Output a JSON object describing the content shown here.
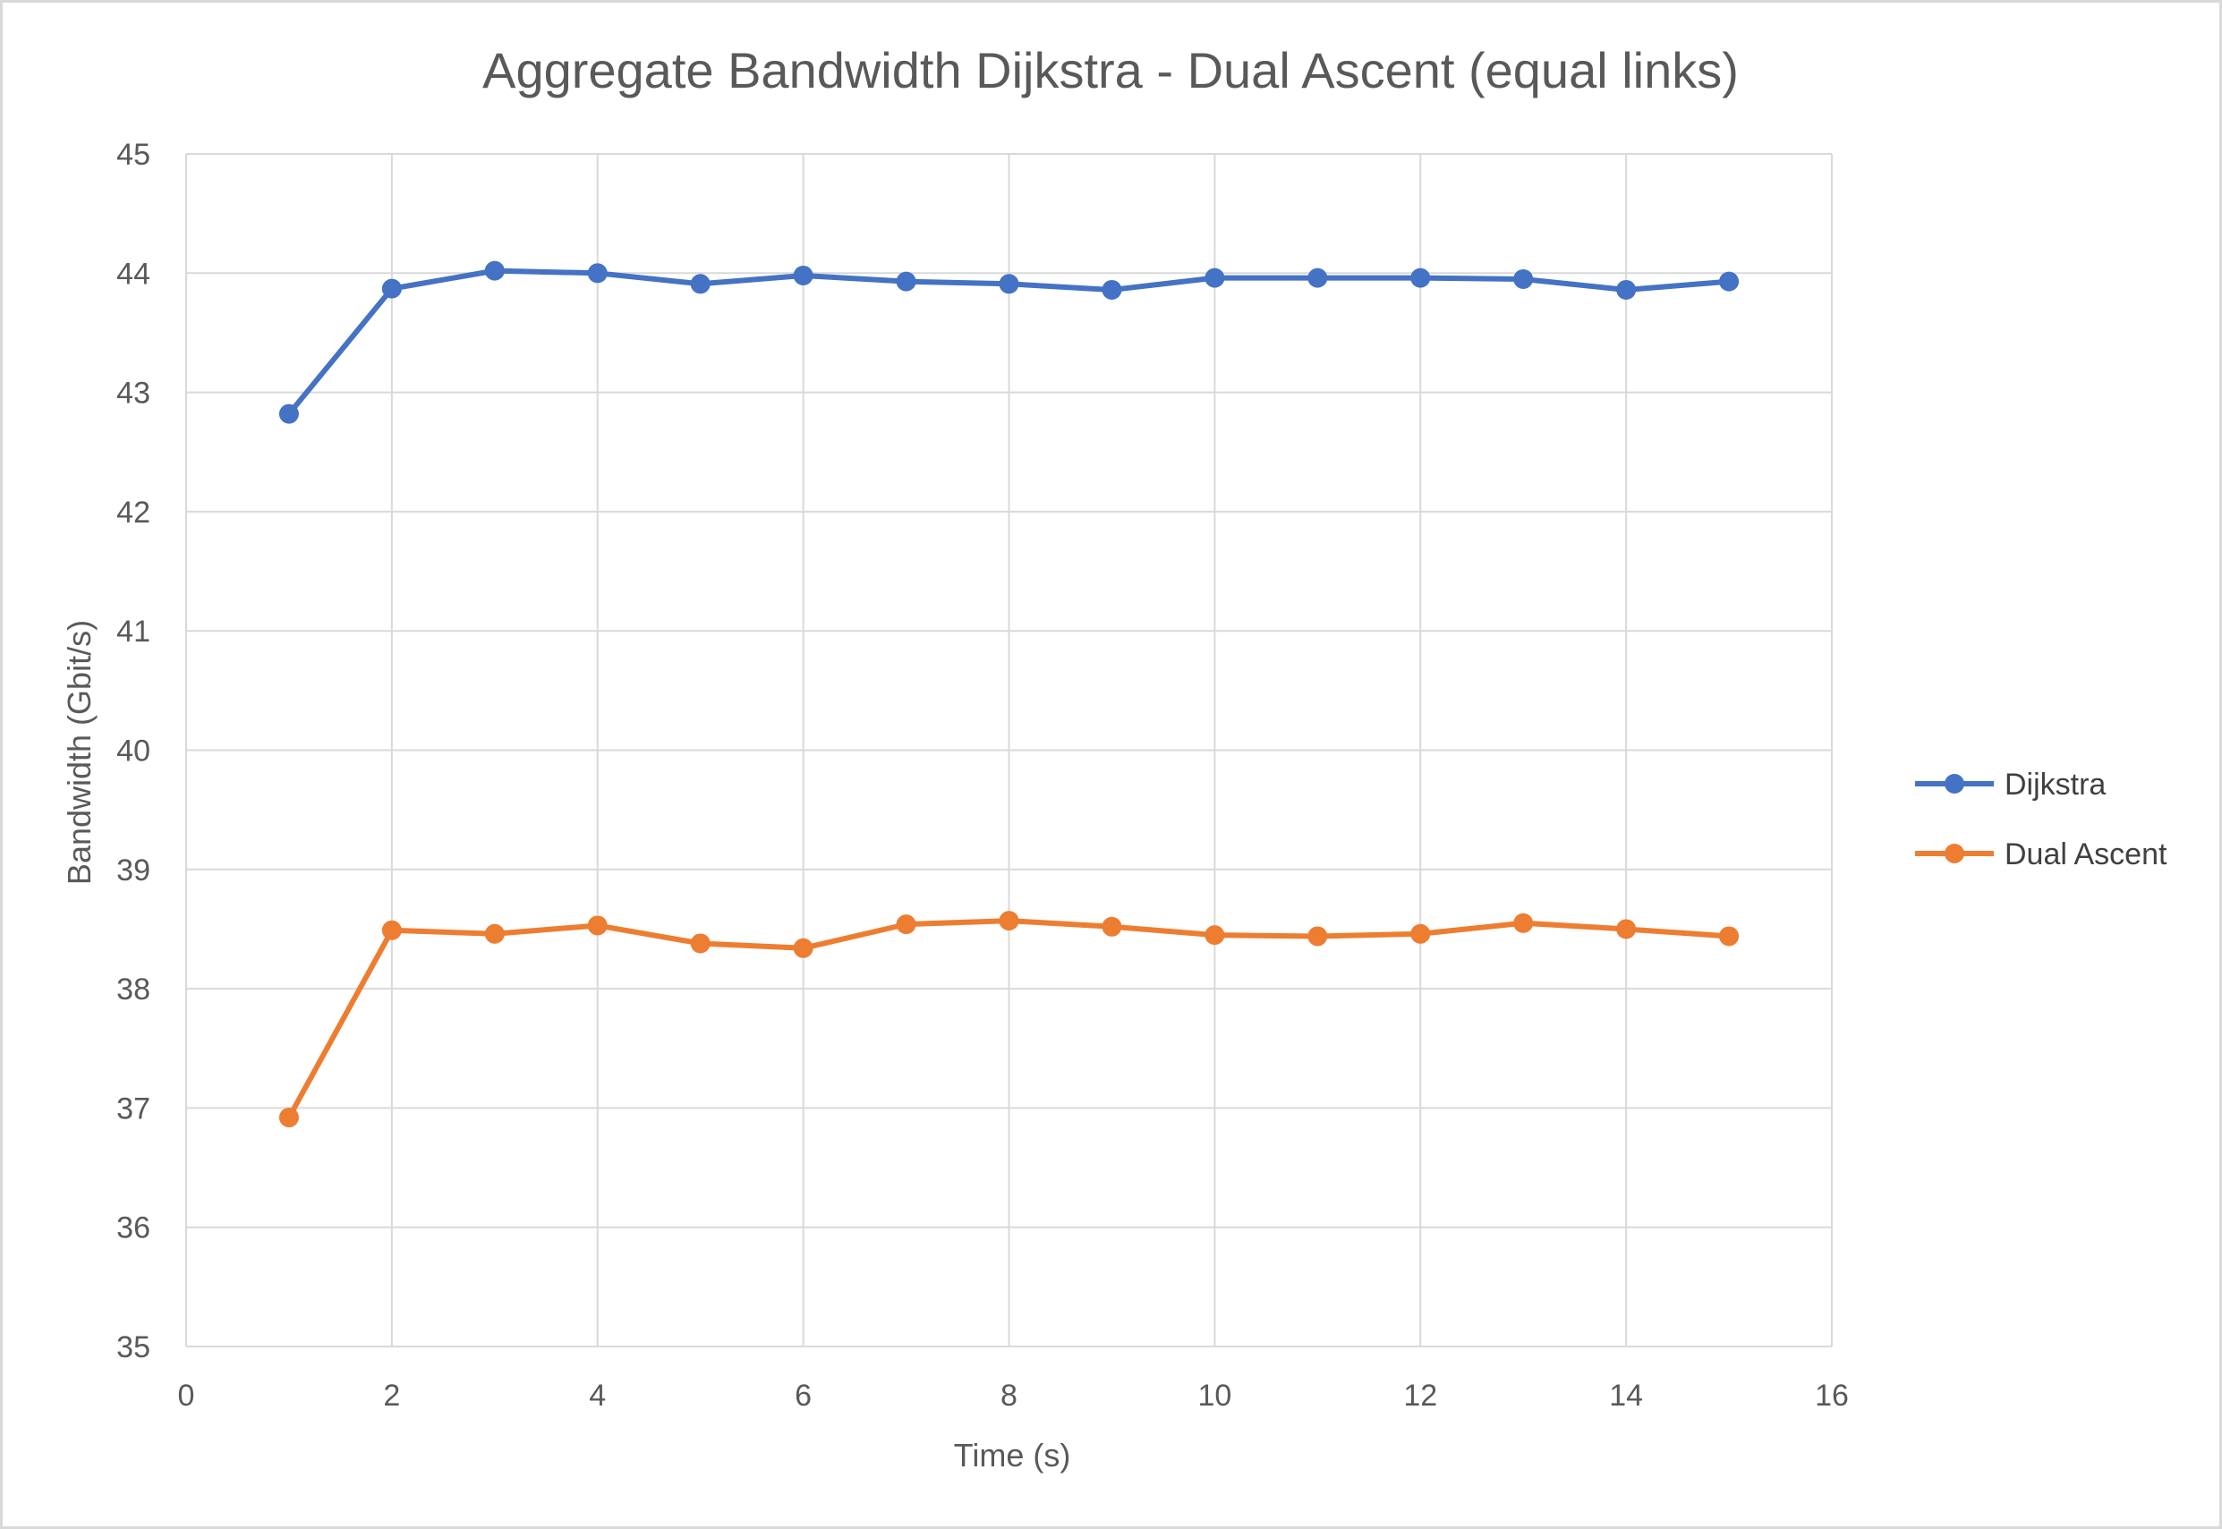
{
  "chart_data": {
    "type": "line",
    "title": "Aggregate Bandwidth Dijkstra - Dual Ascent (equal links)",
    "xlabel": "Time (s)",
    "ylabel": "Bandwidth (Gbit/s)",
    "xlim": [
      0,
      16
    ],
    "ylim": [
      35,
      45
    ],
    "xticks": [
      0,
      2,
      4,
      6,
      8,
      10,
      12,
      14,
      16
    ],
    "yticks": [
      35,
      36,
      37,
      38,
      39,
      40,
      41,
      42,
      43,
      44,
      45
    ],
    "grid": true,
    "legend_position": "right",
    "x": [
      1,
      2,
      3,
      4,
      5,
      6,
      7,
      8,
      9,
      10,
      11,
      12,
      13,
      14,
      15
    ],
    "series": [
      {
        "name": "Dijkstra",
        "color": "#4472c4",
        "values": [
          42.82,
          43.87,
          44.02,
          44.0,
          43.91,
          43.98,
          43.93,
          43.91,
          43.86,
          43.96,
          43.96,
          43.96,
          43.95,
          43.86,
          43.93
        ]
      },
      {
        "name": "Dual Ascent",
        "color": "#ed7d31",
        "values": [
          36.92,
          38.49,
          38.46,
          38.53,
          38.38,
          38.34,
          38.54,
          38.57,
          38.52,
          38.45,
          38.44,
          38.46,
          38.55,
          38.5,
          38.44
        ]
      }
    ]
  }
}
